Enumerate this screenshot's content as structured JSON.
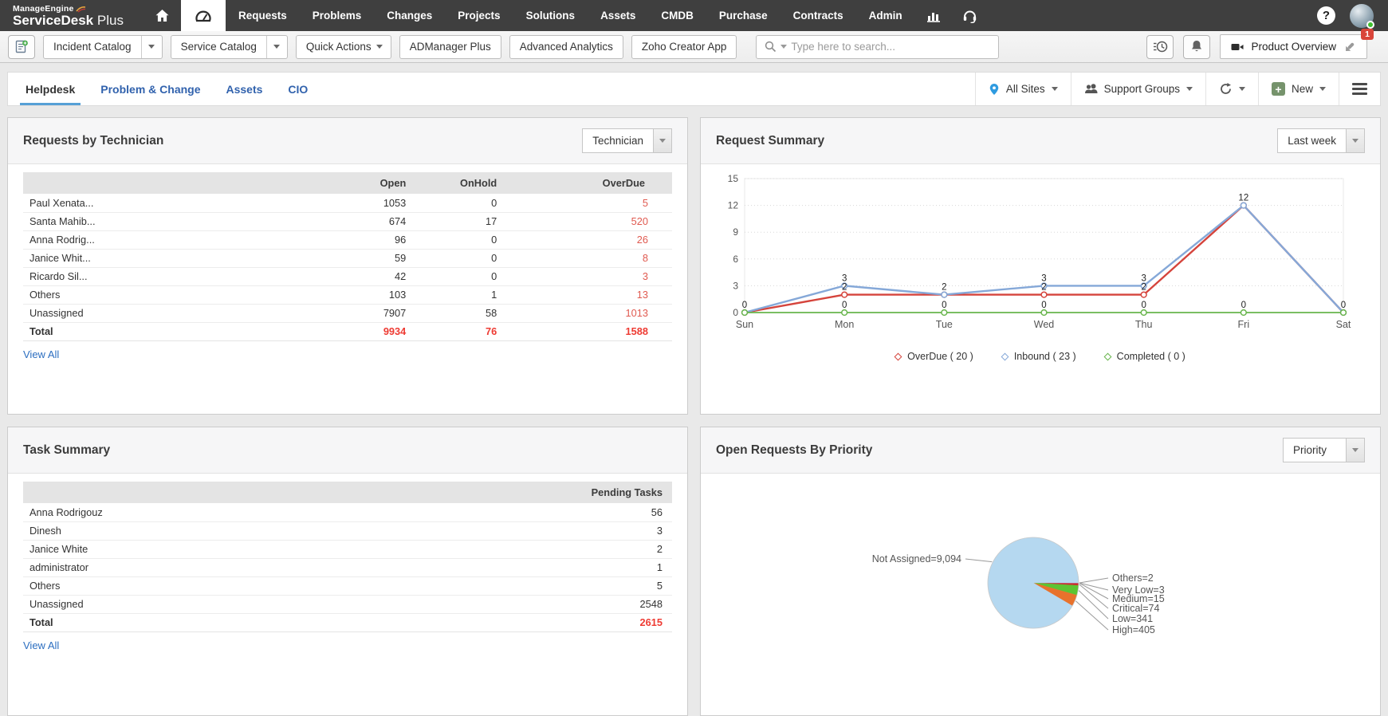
{
  "brand": {
    "company": "ManageEngine",
    "product_bold": "ServiceDesk",
    "product_light": "Plus"
  },
  "topnav": {
    "items": [
      "Requests",
      "Problems",
      "Changes",
      "Projects",
      "Solutions",
      "Assets",
      "CMDB",
      "Purchase",
      "Contracts",
      "Admin"
    ]
  },
  "toolbar": {
    "incident_catalog": "Incident Catalog",
    "service_catalog": "Service Catalog",
    "quick_actions": "Quick Actions",
    "admanager_plus": "ADManager Plus",
    "advanced_analytics": "Advanced Analytics",
    "zoho_creator_app": "Zoho Creator App",
    "search_placeholder": "Type here to search...",
    "product_overview": "Product Overview",
    "notification_badge": "1"
  },
  "tabbar": {
    "tabs": [
      {
        "label": "Helpdesk",
        "active": true
      },
      {
        "label": "Problem & Change",
        "active": false
      },
      {
        "label": "Assets",
        "active": false
      },
      {
        "label": "CIO",
        "active": false
      }
    ],
    "all_sites": "All Sites",
    "support_groups": "Support Groups",
    "new_label": "New"
  },
  "requests_by_technician": {
    "title": "Requests by Technician",
    "filter_value": "Technician",
    "columns": [
      "Open",
      "OnHold",
      "OverDue"
    ],
    "rows": [
      {
        "name": "Paul Xenata...",
        "open": "1053",
        "onhold": "0",
        "overdue": "5"
      },
      {
        "name": "Santa Mahib...",
        "open": "674",
        "onhold": "17",
        "overdue": "520"
      },
      {
        "name": "Anna Rodrig...",
        "open": "96",
        "onhold": "0",
        "overdue": "26"
      },
      {
        "name": "Janice Whit...",
        "open": "59",
        "onhold": "0",
        "overdue": "8"
      },
      {
        "name": "Ricardo Sil...",
        "open": "42",
        "onhold": "0",
        "overdue": "3"
      },
      {
        "name": "Others",
        "open": "103",
        "onhold": "1",
        "overdue": "13"
      },
      {
        "name": "Unassigned",
        "open": "7907",
        "onhold": "58",
        "overdue": "1013"
      }
    ],
    "total": {
      "name": "Total",
      "open": "9934",
      "onhold": "76",
      "overdue": "1588"
    },
    "view_all": "View All"
  },
  "request_summary": {
    "title": "Request Summary",
    "filter_value": "Last week"
  },
  "task_summary": {
    "title": "Task Summary",
    "column": "Pending Tasks",
    "rows": [
      {
        "name": "Anna Rodrigouz",
        "value": "56"
      },
      {
        "name": "Dinesh",
        "value": "3"
      },
      {
        "name": "Janice White",
        "value": "2"
      },
      {
        "name": "administrator",
        "value": "1"
      },
      {
        "name": "Others",
        "value": "5"
      },
      {
        "name": "Unassigned",
        "value": "2548"
      }
    ],
    "total": {
      "name": "Total",
      "value": "2615"
    },
    "view_all": "View All"
  },
  "open_requests_by_priority": {
    "title": "Open Requests By Priority",
    "filter_value": "Priority"
  },
  "chart_data": [
    {
      "type": "line",
      "title": "Request Summary",
      "categories": [
        "Sun",
        "Mon",
        "Tue",
        "Wed",
        "Thu",
        "Fri",
        "Sat"
      ],
      "series": [
        {
          "name": "OverDue",
          "total": 20,
          "color": "#d5443c",
          "values": [
            0,
            2,
            2,
            2,
            2,
            12,
            0
          ]
        },
        {
          "name": "Inbound",
          "total": 23,
          "color": "#85a8d8",
          "values": [
            0,
            3,
            2,
            3,
            3,
            12,
            0
          ]
        },
        {
          "name": "Completed",
          "total": 0,
          "color": "#67b54b",
          "values": [
            0,
            0,
            0,
            0,
            0,
            0,
            0
          ]
        }
      ],
      "ylim": [
        0,
        15
      ],
      "yticks": [
        0,
        3,
        6,
        9,
        12,
        15
      ],
      "grid": true,
      "legend_position": "bottom",
      "legend_labels": [
        "OverDue ( 20 )",
        "Inbound ( 23 )",
        "Completed ( 0 )"
      ]
    },
    {
      "type": "pie",
      "title": "Open Requests By Priority",
      "slices": [
        {
          "name": "Others",
          "value": 2,
          "label": "Others=2",
          "color": "#7b3fa0"
        },
        {
          "name": "Very Low",
          "value": 3,
          "label": "Very Low=3",
          "color": "#d6c44e"
        },
        {
          "name": "Medium",
          "value": 15,
          "label": "Medium=15",
          "color": "#a84ea8"
        },
        {
          "name": "Critical",
          "value": 74,
          "label": "Critical=74",
          "color": "#cc2d2d"
        },
        {
          "name": "Low",
          "value": 341,
          "label": "Low=341",
          "color": "#5cc433"
        },
        {
          "name": "High",
          "value": 405,
          "label": "High=405",
          "color": "#e8722c"
        },
        {
          "name": "Not Assigned",
          "value": 9094,
          "label": "Not Assigned=9,094",
          "color": "#b5d8f0"
        }
      ]
    }
  ]
}
